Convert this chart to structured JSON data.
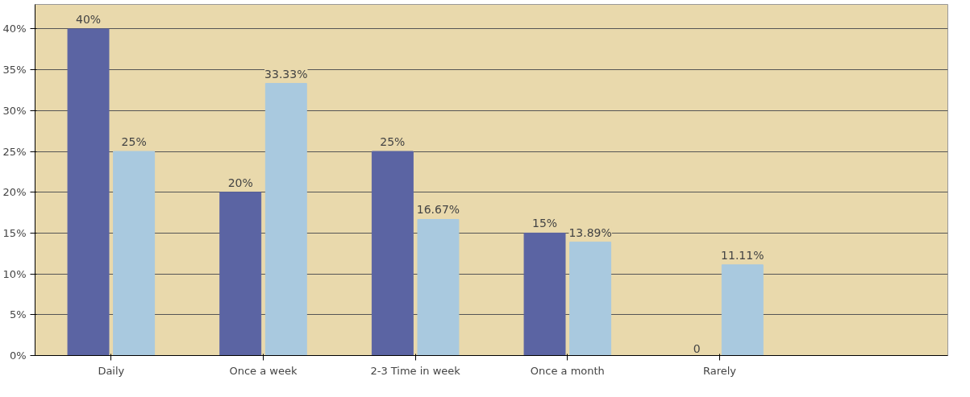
{
  "chart_data": {
    "type": "bar",
    "categories": [
      "Daily",
      "Once a week",
      "2-3 Time in week",
      "Once a month",
      "Rarely"
    ],
    "series": [
      {
        "color": "#5b64a3",
        "values": [
          40,
          20,
          25,
          15,
          0
        ],
        "value_labels": [
          "40%",
          "20%",
          "25%",
          "15%",
          "0"
        ]
      },
      {
        "color": "#a9c9df",
        "values": [
          25,
          33.33,
          16.67,
          13.89,
          11.11
        ],
        "value_labels": [
          "25%",
          "33.33%",
          "16.67%",
          "13.89%",
          "11.11%"
        ]
      }
    ],
    "ylim": [
      0,
      40
    ],
    "yticks": [
      {
        "value": 0,
        "label": "0%"
      },
      {
        "value": 5,
        "label": "5%"
      },
      {
        "value": 10,
        "label": "10%"
      },
      {
        "value": 15,
        "label": "15%"
      },
      {
        "value": 20,
        "label": "20%"
      },
      {
        "value": 25,
        "label": "25%"
      },
      {
        "value": 30,
        "label": "30%"
      },
      {
        "value": 35,
        "label": "35%"
      },
      {
        "value": 40,
        "label": "40%"
      }
    ],
    "grid": "y"
  }
}
